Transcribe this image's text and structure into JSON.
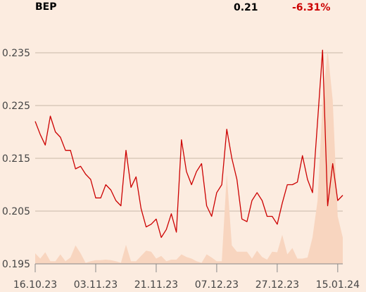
{
  "header": {
    "ticker": "BEP",
    "last_price": "0.21",
    "change_pct": "-6.31%"
  },
  "colors": {
    "background": "#fcece0",
    "line": "#cc0000",
    "change_negative": "#cc0000",
    "volume_fill": "#f8d5bf",
    "grid": "#c9b8a8"
  },
  "chart_data": {
    "type": "line",
    "title": "",
    "xlabel": "",
    "ylabel": "",
    "ylim": [
      0.195,
      0.235
    ],
    "y_ticks": [
      "0.195",
      "0.205",
      "0.215",
      "0.225",
      "0.235"
    ],
    "y_tick_values": [
      0.195,
      0.205,
      0.215,
      0.225,
      0.235
    ],
    "x_ticks": [
      "16.10.23",
      "03.11.23",
      "21.11.23",
      "07.12.23",
      "27.12.23",
      "15.01.24"
    ],
    "x_tick_indices": [
      0,
      12,
      24,
      36,
      48,
      60
    ],
    "grid": true,
    "series": [
      {
        "type": "line",
        "values": [
          0.222,
          0.2195,
          0.2175,
          0.223,
          0.22,
          0.219,
          0.2165,
          0.2165,
          0.213,
          0.2135,
          0.212,
          0.211,
          0.2075,
          0.2075,
          0.21,
          0.209,
          0.207,
          0.206,
          0.2165,
          0.2095,
          0.2115,
          0.2055,
          0.202,
          0.2025,
          0.2035,
          0.2,
          0.2015,
          0.2045,
          0.201,
          0.2185,
          0.2125,
          0.21,
          0.2125,
          0.214,
          0.206,
          0.204,
          0.2085,
          0.21,
          0.2205,
          0.215,
          0.211,
          0.2035,
          0.203,
          0.207,
          0.2085,
          0.207,
          0.204,
          0.204,
          0.2025,
          0.2065,
          0.21,
          0.21,
          0.2105,
          0.2155,
          0.211,
          0.2085,
          0.222,
          0.2355,
          0.206,
          0.214,
          0.207,
          0.208
        ]
      },
      {
        "type": "area",
        "values": [
          0.197,
          0.196,
          0.1972,
          0.1955,
          0.1955,
          0.1968,
          0.1955,
          0.1962,
          0.1985,
          0.197,
          0.1952,
          0.1955,
          0.1957,
          0.1957,
          0.1958,
          0.1957,
          0.1955,
          0.1952,
          0.1986,
          0.1955,
          0.1955,
          0.1965,
          0.1975,
          0.1973,
          0.196,
          0.1965,
          0.1955,
          0.1958,
          0.1958,
          0.1968,
          0.1963,
          0.196,
          0.1955,
          0.1952,
          0.1968,
          0.1962,
          0.1955,
          0.1955,
          0.212,
          0.1985,
          0.1973,
          0.1973,
          0.1973,
          0.196,
          0.1975,
          0.1963,
          0.1958,
          0.1973,
          0.1972,
          0.2005,
          0.1968,
          0.198,
          0.196,
          0.196,
          0.1962,
          0.2,
          0.207,
          0.2255,
          0.2355,
          0.226,
          0.204,
          0.2
        ]
      }
    ]
  }
}
